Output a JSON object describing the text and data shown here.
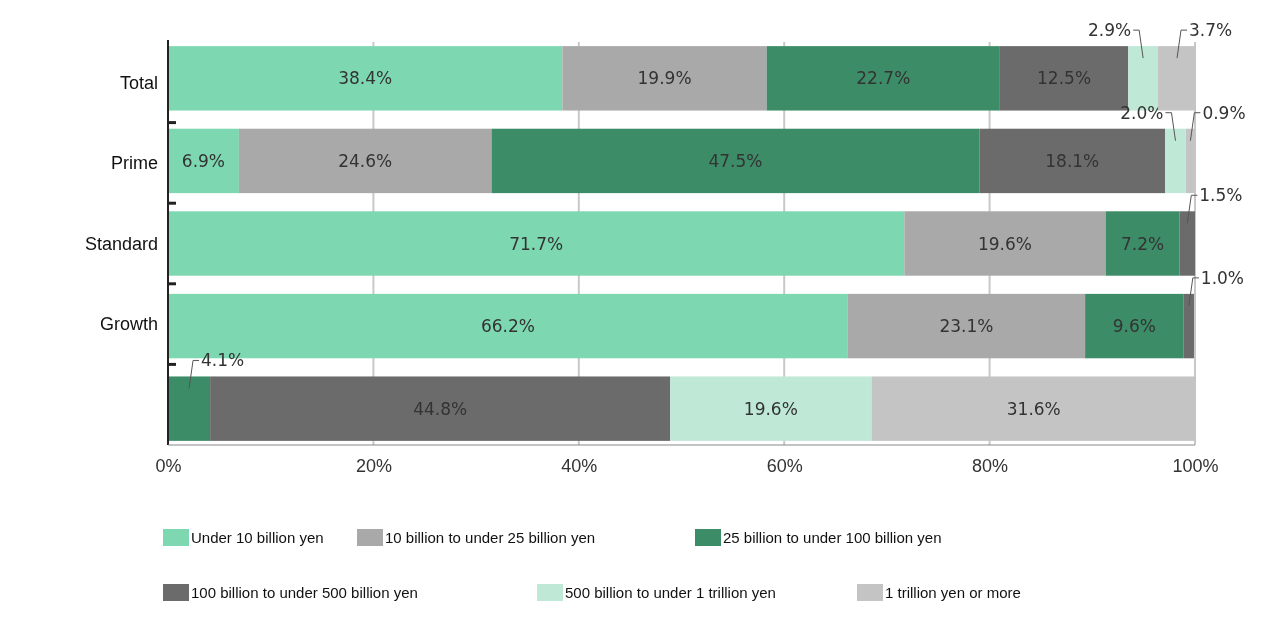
{
  "chart_data": {
    "type": "bar",
    "orientation": "horizontal",
    "stacked": true,
    "categories": [
      "Total",
      "Prime",
      "Standard",
      "Growth",
      null
    ],
    "series": [
      {
        "name": "Under 10 billion yen",
        "color": "#7dd8b2",
        "values": [
          38.4,
          6.9,
          71.7,
          66.2,
          null
        ],
        "value_labels": [
          "38.4%",
          "6.9%",
          "71.7%",
          "66.2%",
          null
        ]
      },
      {
        "name": "10 billion to under 25 billion yen",
        "color": "#a9a9a9",
        "values": [
          19.9,
          24.6,
          19.6,
          23.1,
          null
        ],
        "value_labels": [
          "19.9%",
          "24.6%",
          "19.6%",
          "23.1%",
          null
        ]
      },
      {
        "name": "25 billion to under 100 billion yen",
        "color": "#3d8c68",
        "values": [
          22.7,
          47.5,
          7.2,
          9.6,
          4.1
        ],
        "value_labels": [
          "22.7%",
          "47.5%",
          "7.2%",
          "9.6%",
          "4.1%"
        ]
      },
      {
        "name": "100 billion to under 500 billion yen",
        "color": "#6b6b6b",
        "values": [
          12.5,
          18.1,
          1.5,
          1.0,
          44.8
        ],
        "value_labels": [
          "12.5%",
          "18.1%",
          "1.5%",
          "1.0%",
          "44.8%"
        ]
      },
      {
        "name": "500 billion to under 1 trillion yen",
        "color": "#bfe9d6",
        "values": [
          2.9,
          2.0,
          null,
          null,
          19.6
        ],
        "value_labels": [
          "2.9%",
          "2.0%",
          null,
          null,
          "19.6%"
        ]
      },
      {
        "name": "1 trillion yen or more",
        "color": "#c4c4c4",
        "values": [
          3.7,
          0.9,
          null,
          null,
          31.6
        ],
        "value_labels": [
          "3.7%",
          "0.9%",
          null,
          null,
          "31.6%"
        ]
      }
    ],
    "xlim": [
      0,
      100
    ],
    "xticks": [
      {
        "value": 0,
        "label": "0%"
      },
      {
        "value": 20,
        "label": "20%"
      },
      {
        "value": 40,
        "label": "40%"
      },
      {
        "value": 60,
        "label": "60%"
      },
      {
        "value": 80,
        "label": "80%"
      },
      {
        "value": 100,
        "label": "100%"
      }
    ],
    "grid": "x",
    "legend": "bottom"
  }
}
